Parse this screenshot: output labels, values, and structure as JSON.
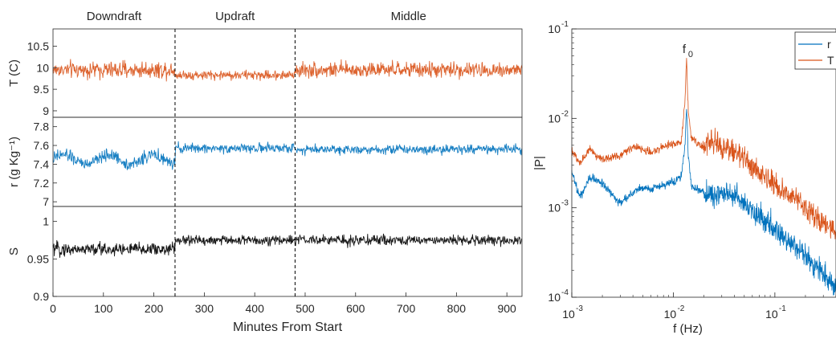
{
  "chart_data": [
    {
      "type": "line",
      "panels": [
        {
          "ylabel": "T (C)",
          "ylim": [
            8.85,
            10.9
          ],
          "yticks": [
            9,
            9.5,
            10,
            10.5
          ],
          "ytick_labels": [
            "9",
            "9.5",
            "10",
            "10.5"
          ],
          "color": "#D95319",
          "segments": [
            {
              "x0": 0,
              "x1": 242,
              "mean": 9.95,
              "amplitude": 0.38
            },
            {
              "x0": 242,
              "x1": 480,
              "mean": 9.83,
              "amplitude": 0.22
            },
            {
              "x0": 480,
              "x1": 930,
              "mean": 9.95,
              "amplitude": 0.35
            }
          ]
        },
        {
          "ylabel": "r (g Kg⁻¹)",
          "ylim": [
            6.95,
            7.9
          ],
          "yticks": [
            7,
            7.2,
            7.4,
            7.6,
            7.8
          ],
          "ytick_labels": [
            "7",
            "7.2",
            "7.4",
            "7.6",
            "7.8"
          ],
          "color": "#0072BD",
          "segments": [
            {
              "x0": 0,
              "x1": 242,
              "mean": 7.45,
              "amplitude": 0.13
            },
            {
              "x0": 242,
              "x1": 480,
              "mean": 7.57,
              "amplitude": 0.1
            },
            {
              "x0": 480,
              "x1": 930,
              "mean": 7.56,
              "amplitude": 0.1
            }
          ]
        },
        {
          "ylabel": "S",
          "ylim": [
            0.9,
            1.02
          ],
          "yticks": [
            0.9,
            0.95,
            1
          ],
          "ytick_labels": [
            "0.9",
            "0.95",
            "1"
          ],
          "color": "#000000",
          "segments": [
            {
              "x0": 0,
              "x1": 242,
              "mean": 0.963,
              "amplitude": 0.018
            },
            {
              "x0": 242,
              "x1": 480,
              "mean": 0.975,
              "amplitude": 0.013
            },
            {
              "x0": 480,
              "x1": 930,
              "mean": 0.975,
              "amplitude": 0.013
            }
          ]
        }
      ],
      "x_range": [
        0,
        930
      ],
      "xticks": [
        0,
        100,
        200,
        300,
        400,
        500,
        600,
        700,
        800,
        900
      ],
      "xtick_labels": [
        "0",
        "100",
        "200",
        "300",
        "400",
        "500",
        "600",
        "700",
        "800",
        "900"
      ],
      "xlabel": "Minutes From Start",
      "dividers": [
        242,
        480
      ],
      "regions": [
        {
          "label": "Downdraft",
          "x": 121
        },
        {
          "label": "Updraft",
          "x": 361
        },
        {
          "label": "Middle",
          "x": 705
        }
      ]
    },
    {
      "type": "line",
      "xscale": "log",
      "yscale": "log",
      "xlim": [
        0.001,
        0.4
      ],
      "ylim": [
        0.0001,
        0.1
      ],
      "xlabel": "f (Hz)",
      "ylabel": "|P|",
      "xticks": [
        0.001,
        0.01,
        0.1
      ],
      "yticks": [
        0.0001,
        0.001,
        0.01,
        0.1
      ],
      "annotation": {
        "text": "f",
        "subscript": "0",
        "x": 0.0135
      },
      "legend": {
        "placement": "top-right"
      },
      "series": [
        {
          "name": "r",
          "color": "#0072BD",
          "x": [
            0.001,
            0.0012,
            0.0015,
            0.002,
            0.003,
            0.004,
            0.005,
            0.006,
            0.008,
            0.01,
            0.012,
            0.013,
            0.0135,
            0.014,
            0.015,
            0.017,
            0.02,
            0.025,
            0.03,
            0.04,
            0.05,
            0.07,
            0.1,
            0.15,
            0.2,
            0.3,
            0.4
          ],
          "y": [
            0.0025,
            0.0013,
            0.0022,
            0.0019,
            0.0011,
            0.0015,
            0.0017,
            0.0016,
            0.0018,
            0.0019,
            0.0023,
            0.005,
            0.014,
            0.004,
            0.0018,
            0.0016,
            0.0015,
            0.0013,
            0.0015,
            0.0013,
            0.0011,
            0.0008,
            0.00055,
            0.0004,
            0.00028,
            0.00018,
            0.00013
          ]
        },
        {
          "name": "T",
          "color": "#D95319",
          "x": [
            0.001,
            0.0012,
            0.0015,
            0.002,
            0.003,
            0.004,
            0.005,
            0.006,
            0.008,
            0.01,
            0.012,
            0.013,
            0.0135,
            0.014,
            0.015,
            0.017,
            0.02,
            0.025,
            0.03,
            0.04,
            0.05,
            0.07,
            0.1,
            0.15,
            0.2,
            0.3,
            0.4
          ],
          "y": [
            0.0043,
            0.0031,
            0.0045,
            0.0035,
            0.0038,
            0.0048,
            0.0045,
            0.0042,
            0.0048,
            0.0052,
            0.0055,
            0.015,
            0.047,
            0.012,
            0.0065,
            0.0052,
            0.0048,
            0.0055,
            0.0045,
            0.0042,
            0.0035,
            0.0025,
            0.0018,
            0.0013,
            0.001,
            0.0007,
            0.0005
          ]
        }
      ]
    }
  ]
}
